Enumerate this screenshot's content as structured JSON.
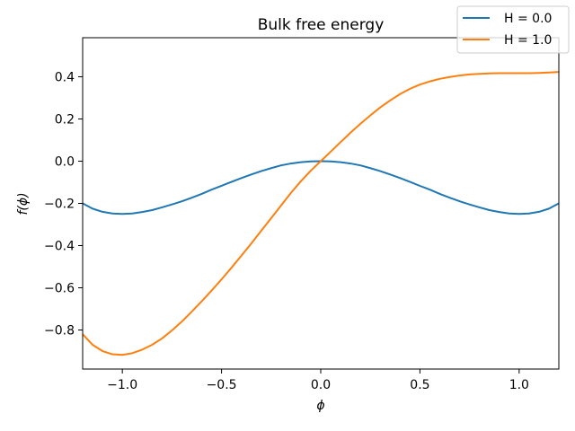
{
  "chart_data": {
    "type": "line",
    "title": "Bulk free energy",
    "xlabel": "ϕ",
    "ylabel": "f(ϕ)",
    "xlim": [
      -1.2,
      1.2
    ],
    "ylim": [
      -0.985,
      0.585
    ],
    "xticks": [
      -1.0,
      -0.5,
      0.0,
      0.5,
      1.0
    ],
    "xtick_labels": [
      "−1.0",
      "−0.5",
      "0.0",
      "0.5",
      "1.0"
    ],
    "yticks": [
      0.4,
      0.2,
      0.0,
      -0.2,
      -0.4,
      -0.6,
      -0.8
    ],
    "ytick_labels": [
      "0.4",
      "0.2",
      "0.0",
      "−0.2",
      "−0.4",
      "−0.6",
      "−0.8"
    ],
    "grid": false,
    "legend_position": "top-right",
    "series": [
      {
        "name": "H = 0.0",
        "color": "#1f77b4",
        "x": [
          -1.2,
          -1.15,
          -1.1,
          -1.05,
          -1.0,
          -0.95,
          -0.9,
          -0.85,
          -0.8,
          -0.75,
          -0.7,
          -0.65,
          -0.6,
          -0.55,
          -0.5,
          -0.45,
          -0.4,
          -0.35,
          -0.3,
          -0.25,
          -0.2,
          -0.15,
          -0.1,
          -0.05,
          0.0,
          0.05,
          0.1,
          0.15,
          0.2,
          0.25,
          0.3,
          0.35,
          0.4,
          0.45,
          0.5,
          0.55,
          0.6,
          0.65,
          0.7,
          0.75,
          0.8,
          0.85,
          0.9,
          0.95,
          1.0,
          1.05,
          1.1,
          1.15,
          1.2
        ],
        "y": [
          -0.2,
          -0.225,
          -0.24,
          -0.248,
          -0.25,
          -0.248,
          -0.241,
          -0.232,
          -0.219,
          -0.205,
          -0.19,
          -0.173,
          -0.155,
          -0.135,
          -0.117,
          -0.098,
          -0.08,
          -0.063,
          -0.047,
          -0.033,
          -0.02,
          -0.011,
          -0.005,
          -0.001,
          0.0,
          -0.001,
          -0.005,
          -0.011,
          -0.02,
          -0.033,
          -0.047,
          -0.063,
          -0.08,
          -0.098,
          -0.117,
          -0.135,
          -0.155,
          -0.173,
          -0.19,
          -0.205,
          -0.219,
          -0.232,
          -0.241,
          -0.248,
          -0.25,
          -0.248,
          -0.24,
          -0.225,
          -0.2
        ]
      },
      {
        "name": "H = 1.0",
        "color": "#ff7f0e",
        "x": [
          -1.2,
          -1.15,
          -1.1,
          -1.05,
          -1.0,
          -0.95,
          -0.9,
          -0.85,
          -0.8,
          -0.75,
          -0.7,
          -0.65,
          -0.6,
          -0.55,
          -0.5,
          -0.45,
          -0.4,
          -0.35,
          -0.3,
          -0.25,
          -0.2,
          -0.15,
          -0.1,
          -0.05,
          0.0,
          0.05,
          0.1,
          0.15,
          0.2,
          0.25,
          0.3,
          0.35,
          0.4,
          0.45,
          0.5,
          0.55,
          0.6,
          0.65,
          0.7,
          0.75,
          0.8,
          0.85,
          0.9,
          0.95,
          1.0,
          1.05,
          1.1,
          1.15,
          1.2
        ],
        "y": [
          -0.82,
          -0.87,
          -0.9,
          -0.915,
          -0.918,
          -0.91,
          -0.893,
          -0.87,
          -0.84,
          -0.802,
          -0.76,
          -0.713,
          -0.664,
          -0.613,
          -0.56,
          -0.505,
          -0.448,
          -0.39,
          -0.33,
          -0.27,
          -0.21,
          -0.15,
          -0.095,
          -0.045,
          0.0,
          0.045,
          0.09,
          0.135,
          0.177,
          0.217,
          0.255,
          0.288,
          0.318,
          0.343,
          0.363,
          0.378,
          0.39,
          0.399,
          0.406,
          0.411,
          0.414,
          0.416,
          0.417,
          0.417,
          0.417,
          0.417,
          0.418,
          0.42,
          0.423
        ]
      }
    ]
  }
}
